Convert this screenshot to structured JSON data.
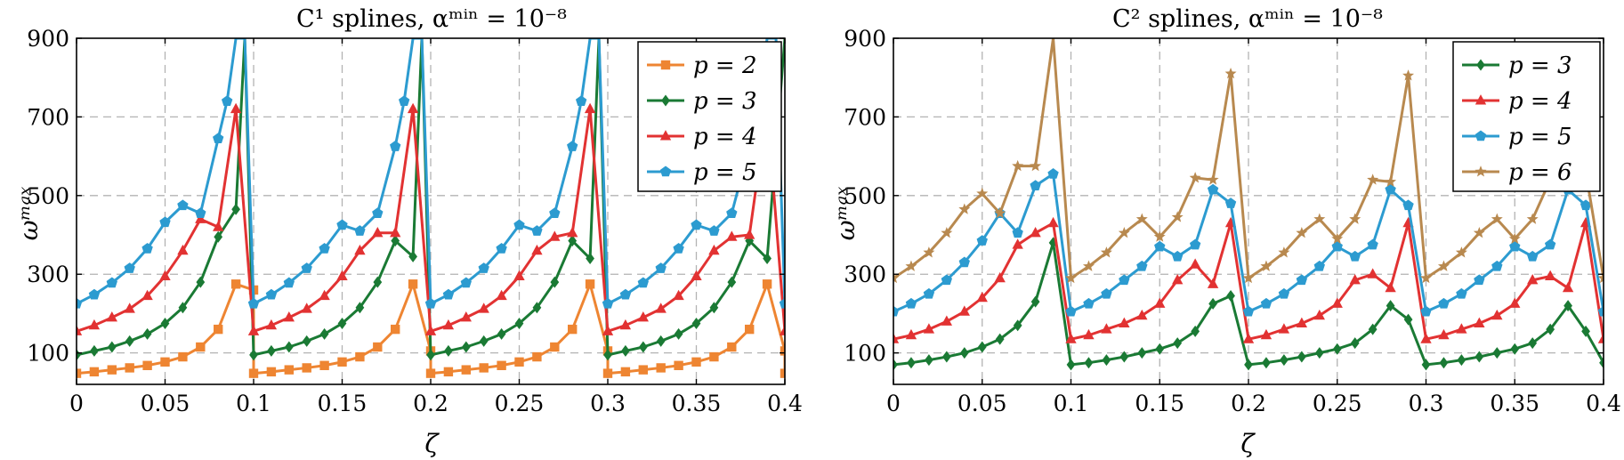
{
  "colors": {
    "orange": "#ee8532",
    "green": "#1a7a34",
    "red": "#e23232",
    "blue": "#2c9bd0",
    "brown": "#b8894f"
  },
  "chart_data": [
    {
      "type": "line",
      "title": "C¹ splines, αᵐⁱⁿ = 10⁻⁸",
      "xlabel": "ζ",
      "ylabel": "ωᵐᵃˣ",
      "xlim": [
        0,
        0.4
      ],
      "ylim": [
        20,
        900
      ],
      "xticks": [
        0,
        0.05,
        0.1,
        0.15,
        0.2,
        0.25,
        0.3,
        0.35,
        0.4
      ],
      "xtick_labels": [
        "0",
        "0.05",
        "0.1",
        "0.15",
        "0.2",
        "0.25",
        "0.3",
        "0.35",
        "0.4"
      ],
      "yticks": [
        100,
        300,
        500,
        700,
        900
      ],
      "ytick_labels": [
        "100",
        "300",
        "500",
        "700",
        "900"
      ],
      "grid": true,
      "legend_position": "top-right",
      "x": [
        0,
        0.01,
        0.02,
        0.03,
        0.04,
        0.05,
        0.06,
        0.07,
        0.08,
        0.09,
        0.1,
        0.11,
        0.12,
        0.13,
        0.14,
        0.15,
        0.16,
        0.17,
        0.18,
        0.19,
        0.2,
        0.21,
        0.22,
        0.23,
        0.24,
        0.25,
        0.26,
        0.27,
        0.28,
        0.29,
        0.3,
        0.31,
        0.32,
        0.33,
        0.34,
        0.35,
        0.36,
        0.37,
        0.38,
        0.39,
        0.4
      ],
      "series": [
        {
          "name": "p = 2",
          "color_key": "orange",
          "marker": "square",
          "values": [
            48,
            52,
            57,
            62,
            68,
            77,
            90,
            115,
            160,
            275,
            48,
            52,
            57,
            62,
            68,
            77,
            90,
            115,
            160,
            275,
            48,
            52,
            57,
            62,
            68,
            77,
            90,
            115,
            160,
            275,
            48,
            52,
            57,
            62,
            68,
            77,
            90,
            115,
            160,
            275,
            48
          ],
          "display_values": [
            48,
            52,
            57,
            62,
            68,
            77,
            90,
            115,
            160,
            275,
            260,
            48,
            52,
            57,
            62,
            68,
            77,
            90,
            115,
            160,
            275,
            105,
            48,
            52,
            57,
            62,
            68,
            77,
            90,
            115,
            160,
            275,
            105,
            48,
            52,
            57,
            62,
            68,
            77,
            90,
            115,
            160,
            275,
            105,
            48
          ],
          "display_x": [
            0,
            0.01,
            0.02,
            0.03,
            0.04,
            0.05,
            0.06,
            0.07,
            0.08,
            0.09,
            0.1,
            0.1,
            0.11,
            0.12,
            0.13,
            0.14,
            0.15,
            0.16,
            0.17,
            0.18,
            0.19,
            0.2,
            0.2,
            0.21,
            0.22,
            0.23,
            0.24,
            0.25,
            0.26,
            0.27,
            0.28,
            0.29,
            0.3,
            0.3,
            0.31,
            0.32,
            0.33,
            0.34,
            0.35,
            0.36,
            0.37,
            0.38,
            0.39,
            0.4,
            0.4
          ]
        },
        {
          "name": "p = 3",
          "color_key": "green",
          "marker": "diamond",
          "display_x": [
            0,
            0.01,
            0.02,
            0.03,
            0.04,
            0.05,
            0.06,
            0.07,
            0.08,
            0.09,
            0.095,
            0.1,
            0.11,
            0.12,
            0.13,
            0.14,
            0.15,
            0.16,
            0.17,
            0.18,
            0.19,
            0.195,
            0.2,
            0.21,
            0.22,
            0.23,
            0.24,
            0.25,
            0.26,
            0.27,
            0.28,
            0.29,
            0.295,
            0.3,
            0.31,
            0.32,
            0.33,
            0.34,
            0.35,
            0.36,
            0.37,
            0.38,
            0.39,
            0.4
          ],
          "display_values": [
            95,
            105,
            115,
            130,
            148,
            175,
            215,
            280,
            395,
            465,
            900,
            95,
            105,
            115,
            130,
            148,
            175,
            215,
            280,
            385,
            345,
            900,
            95,
            105,
            115,
            130,
            148,
            175,
            215,
            280,
            385,
            340,
            900,
            95,
            105,
            115,
            130,
            148,
            175,
            215,
            280,
            385,
            340,
            900
          ]
        },
        {
          "name": "p = 4",
          "color_key": "red",
          "marker": "triangle",
          "display_x": [
            0,
            0.01,
            0.02,
            0.03,
            0.04,
            0.05,
            0.06,
            0.07,
            0.08,
            0.09,
            0.1,
            0.11,
            0.12,
            0.13,
            0.14,
            0.15,
            0.16,
            0.17,
            0.18,
            0.19,
            0.2,
            0.21,
            0.22,
            0.23,
            0.24,
            0.25,
            0.26,
            0.27,
            0.28,
            0.29,
            0.3,
            0.31,
            0.32,
            0.33,
            0.34,
            0.35,
            0.36,
            0.37,
            0.38,
            0.39,
            0.4
          ],
          "display_values": [
            155,
            170,
            190,
            212,
            245,
            295,
            360,
            440,
            420,
            720,
            155,
            170,
            190,
            212,
            245,
            295,
            360,
            405,
            405,
            720,
            155,
            170,
            190,
            212,
            245,
            295,
            360,
            395,
            405,
            720,
            155,
            170,
            190,
            212,
            245,
            295,
            360,
            395,
            400,
            720,
            155
          ]
        },
        {
          "name": "p = 5",
          "color_key": "blue",
          "marker": "pentagon",
          "display_x": [
            0,
            0.01,
            0.02,
            0.03,
            0.04,
            0.05,
            0.06,
            0.07,
            0.08,
            0.085,
            0.09,
            0.095,
            0.1,
            0.11,
            0.12,
            0.13,
            0.14,
            0.15,
            0.16,
            0.17,
            0.18,
            0.185,
            0.19,
            0.195,
            0.2,
            0.21,
            0.22,
            0.23,
            0.24,
            0.25,
            0.26,
            0.27,
            0.28,
            0.285,
            0.29,
            0.295,
            0.3,
            0.31,
            0.32,
            0.33,
            0.34,
            0.35,
            0.36,
            0.37,
            0.38,
            0.385,
            0.39,
            0.395,
            0.4
          ],
          "display_values": [
            225,
            248,
            278,
            315,
            365,
            432,
            475,
            455,
            645,
            740,
            900,
            900,
            225,
            248,
            278,
            315,
            365,
            425,
            410,
            455,
            625,
            740,
            900,
            900,
            225,
            248,
            278,
            315,
            365,
            425,
            410,
            455,
            625,
            740,
            900,
            900,
            225,
            248,
            278,
            315,
            365,
            425,
            410,
            455,
            625,
            740,
            900,
            900,
            225
          ]
        }
      ]
    },
    {
      "type": "line",
      "title": "C² splines, αᵐⁱⁿ = 10⁻⁸",
      "xlabel": "ζ",
      "ylabel": "ωᵐᵃˣ",
      "xlim": [
        0,
        0.4
      ],
      "ylim": [
        20,
        900
      ],
      "xticks": [
        0,
        0.05,
        0.1,
        0.15,
        0.2,
        0.25,
        0.3,
        0.35,
        0.4
      ],
      "xtick_labels": [
        "0",
        "0.05",
        "0.1",
        "0.15",
        "0.2",
        "0.25",
        "0.3",
        "0.35",
        "0.4"
      ],
      "yticks": [
        100,
        300,
        500,
        700,
        900
      ],
      "ytick_labels": [
        "100",
        "300",
        "500",
        "700",
        "900"
      ],
      "grid": true,
      "legend_position": "top-right",
      "series": [
        {
          "name": "p = 3",
          "color_key": "green",
          "marker": "diamond",
          "display_x": [
            0,
            0.01,
            0.02,
            0.03,
            0.04,
            0.05,
            0.06,
            0.07,
            0.08,
            0.09,
            0.1,
            0.11,
            0.12,
            0.13,
            0.14,
            0.15,
            0.16,
            0.17,
            0.18,
            0.19,
            0.2,
            0.21,
            0.22,
            0.23,
            0.24,
            0.25,
            0.26,
            0.27,
            0.28,
            0.29,
            0.3,
            0.31,
            0.32,
            0.33,
            0.34,
            0.35,
            0.36,
            0.37,
            0.38,
            0.39,
            0.4
          ],
          "display_values": [
            70,
            75,
            82,
            90,
            100,
            115,
            135,
            170,
            230,
            380,
            70,
            75,
            82,
            90,
            100,
            110,
            125,
            155,
            225,
            245,
            70,
            75,
            82,
            90,
            100,
            110,
            125,
            160,
            220,
            185,
            70,
            75,
            82,
            90,
            100,
            110,
            125,
            160,
            220,
            155,
            75
          ]
        },
        {
          "name": "p = 4",
          "color_key": "red",
          "marker": "triangle",
          "display_x": [
            0,
            0.01,
            0.02,
            0.03,
            0.04,
            0.05,
            0.06,
            0.07,
            0.08,
            0.09,
            0.1,
            0.11,
            0.12,
            0.13,
            0.14,
            0.15,
            0.16,
            0.17,
            0.18,
            0.19,
            0.2,
            0.21,
            0.22,
            0.23,
            0.24,
            0.25,
            0.26,
            0.27,
            0.28,
            0.29,
            0.3,
            0.31,
            0.32,
            0.33,
            0.34,
            0.35,
            0.36,
            0.37,
            0.38,
            0.39,
            0.4
          ],
          "display_values": [
            135,
            145,
            160,
            180,
            205,
            240,
            290,
            375,
            405,
            430,
            135,
            145,
            160,
            175,
            195,
            225,
            285,
            325,
            275,
            430,
            135,
            145,
            160,
            175,
            195,
            225,
            285,
            300,
            265,
            430,
            135,
            145,
            160,
            175,
            195,
            225,
            285,
            295,
            265,
            430,
            135
          ]
        },
        {
          "name": "p = 5",
          "color_key": "blue",
          "marker": "pentagon",
          "display_x": [
            0,
            0.01,
            0.02,
            0.03,
            0.04,
            0.05,
            0.06,
            0.07,
            0.08,
            0.09,
            0.1,
            0.11,
            0.12,
            0.13,
            0.14,
            0.15,
            0.16,
            0.17,
            0.18,
            0.19,
            0.2,
            0.21,
            0.22,
            0.23,
            0.24,
            0.25,
            0.26,
            0.27,
            0.28,
            0.29,
            0.3,
            0.31,
            0.32,
            0.33,
            0.34,
            0.35,
            0.36,
            0.37,
            0.38,
            0.39,
            0.4
          ],
          "display_values": [
            205,
            225,
            250,
            285,
            330,
            385,
            455,
            405,
            525,
            555,
            205,
            225,
            250,
            285,
            320,
            370,
            345,
            375,
            515,
            480,
            205,
            225,
            250,
            285,
            320,
            370,
            345,
            375,
            515,
            475,
            205,
            225,
            250,
            285,
            320,
            370,
            345,
            375,
            515,
            475,
            205
          ]
        },
        {
          "name": "p = 6",
          "color_key": "brown",
          "marker": "star",
          "display_x": [
            0,
            0.01,
            0.02,
            0.03,
            0.04,
            0.05,
            0.06,
            0.07,
            0.08,
            0.09,
            0.1,
            0.11,
            0.12,
            0.13,
            0.14,
            0.15,
            0.16,
            0.17,
            0.18,
            0.19,
            0.2,
            0.21,
            0.22,
            0.23,
            0.24,
            0.25,
            0.26,
            0.27,
            0.28,
            0.29,
            0.3,
            0.31,
            0.32,
            0.33,
            0.34,
            0.35,
            0.36,
            0.37,
            0.38,
            0.39,
            0.4
          ],
          "display_values": [
            290,
            320,
            355,
            405,
            465,
            505,
            455,
            575,
            575,
            900,
            290,
            320,
            355,
            405,
            440,
            395,
            445,
            545,
            540,
            810,
            290,
            320,
            355,
            405,
            440,
            390,
            440,
            540,
            535,
            805,
            290,
            320,
            355,
            405,
            440,
            390,
            440,
            540,
            535,
            560,
            290
          ]
        }
      ]
    }
  ]
}
